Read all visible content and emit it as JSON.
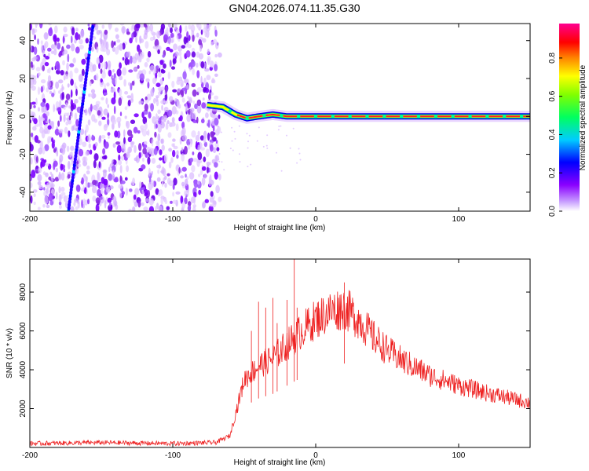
{
  "title": "GN04.2026.074.11.35.G30",
  "chart_data": [
    {
      "type": "heatmap",
      "xlabel": "Height of straight line (km)",
      "ylabel": "Frequency (Hz)",
      "xlim": [
        -200,
        150
      ],
      "ylim": [
        -50,
        49
      ],
      "xticks": [
        -200,
        -100,
        0,
        100
      ],
      "yticks": [
        -40,
        -20,
        0,
        20,
        40
      ],
      "colorbar": {
        "label": "Normalized spectral amplitude",
        "ticks": [
          0.0,
          0.2,
          0.4,
          0.6,
          0.8
        ],
        "range": [
          0,
          0.98
        ]
      },
      "noise_region_x": [
        -200,
        -67
      ],
      "diagonal_trace": [
        [
          -173,
          -50
        ],
        [
          -156,
          47
        ]
      ],
      "carrier_line": [
        [
          -76,
          6
        ],
        [
          -65,
          5
        ],
        [
          -56,
          1
        ],
        [
          -48,
          -1
        ],
        [
          -40,
          0
        ],
        [
          -30,
          1
        ],
        [
          -20,
          0
        ],
        [
          -10,
          0
        ],
        [
          0,
          0
        ],
        [
          20,
          0
        ],
        [
          60,
          0
        ],
        [
          100,
          0
        ],
        [
          150,
          0
        ]
      ],
      "colors": [
        "#e6ccff",
        "#9000ff",
        "#0000ff",
        "#00ffff",
        "#00ff00",
        "#ffff00",
        "#ff0000",
        "#ff00a0"
      ]
    },
    {
      "type": "line",
      "xlabel": "Height of straight line (km)",
      "ylabel": "SNR (10 * v/v)",
      "xlim": [
        -200,
        150
      ],
      "ylim": [
        0,
        9700
      ],
      "xticks": [
        -200,
        -100,
        0,
        100
      ],
      "yticks": [
        2000,
        4000,
        6000,
        8000
      ],
      "series": [
        {
          "color": "#ee2222",
          "envelope": [
            [
              -200,
              200
            ],
            [
              -150,
              250
            ],
            [
              -100,
              200
            ],
            [
              -70,
              250
            ],
            [
              -60,
              600
            ],
            [
              -50,
              3500
            ],
            [
              -40,
              4200
            ],
            [
              -30,
              4600
            ],
            [
              -20,
              5300
            ],
            [
              -10,
              6000
            ],
            [
              0,
              6600
            ],
            [
              10,
              7000
            ],
            [
              20,
              7200
            ],
            [
              30,
              6600
            ],
            [
              40,
              5700
            ],
            [
              50,
              5000
            ],
            [
              60,
              4500
            ],
            [
              80,
              3700
            ],
            [
              100,
              3200
            ],
            [
              120,
              2800
            ],
            [
              150,
              2300
            ]
          ],
          "spikes": [
            [
              -45,
              6000
            ],
            [
              -40,
              7500
            ],
            [
              -35,
              7200
            ],
            [
              -30,
              7700
            ],
            [
              -27,
              6400
            ],
            [
              -20,
              7600
            ],
            [
              -15,
              9700
            ],
            [
              -13,
              7200
            ],
            [
              20,
              8500
            ]
          ]
        }
      ]
    }
  ]
}
